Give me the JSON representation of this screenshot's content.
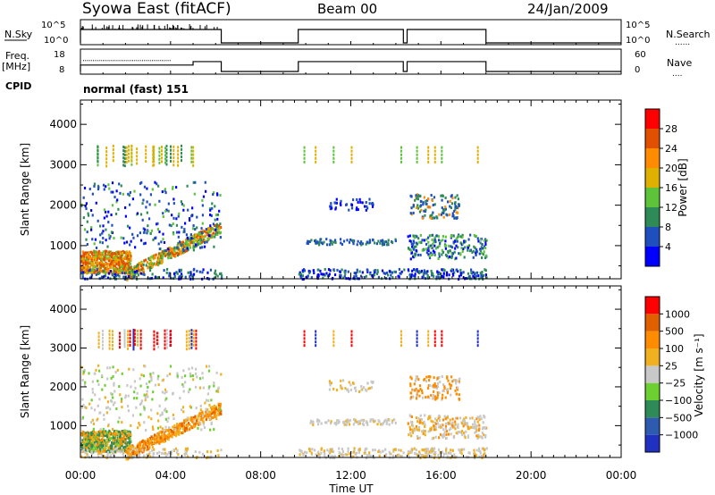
{
  "header": {
    "station": "Syowa East (fitACF)",
    "beam": "Beam 00",
    "date": "24/Jan/2009"
  },
  "labels": {
    "nsky": "N.Sky",
    "nsearch": "N.Search",
    "freq_line1": "Freq.",
    "freq_line2": "[MHz]",
    "nave": "Nave",
    "cpid": "CPID",
    "cpid_value": "normal (fast) 151",
    "nsky_ticks": [
      "10^5",
      "10^0"
    ],
    "nsearch_ticks": [
      "10^5",
      "10^0"
    ],
    "freq_ticks": [
      "18",
      "8"
    ],
    "nave_ticks": [
      "60",
      "0"
    ],
    "search_style": "......",
    "nave_style": "...."
  },
  "colors": {
    "power": [
      "#0000ff",
      "#1f4fbf",
      "#2e8b57",
      "#5dc43a",
      "#e0b000",
      "#ff8c00",
      "#e05000",
      "#ff0000"
    ],
    "velocity": [
      "#2030c0",
      "#2e5ab0",
      "#2e8b57",
      "#6cd030",
      "#c8c8c8",
      "#f0b020",
      "#ff8c00",
      "#e06000",
      "#ff0000"
    ]
  },
  "chart_data": [
    {
      "type": "heatmap",
      "title": "Power",
      "xlabel": "Time UT",
      "ylabel": "Slant Range [km]",
      "xlim": [
        "00:00",
        "24:00"
      ],
      "ylim": [
        180,
        4600
      ],
      "x_ticks": [
        "00:00",
        "04:00",
        "08:00",
        "12:00",
        "16:00",
        "20:00",
        "00:00"
      ],
      "y_ticks": [
        1000,
        2000,
        3000,
        4000
      ],
      "colorbar": {
        "label": "Power [dB]",
        "ticks": [
          4,
          8,
          12,
          16,
          20,
          24,
          28
        ],
        "range": [
          0,
          32
        ]
      },
      "data_segments_ut": [
        [
          "00:00",
          "06:15"
        ],
        [
          "09:40",
          "14:20"
        ],
        [
          "14:30",
          "18:00"
        ]
      ]
    },
    {
      "type": "heatmap",
      "title": "Velocity",
      "xlabel": "Time UT",
      "ylabel": "Slant Range [km]",
      "xlim": [
        "00:00",
        "24:00"
      ],
      "ylim": [
        180,
        4600
      ],
      "x_ticks": [
        "00:00",
        "04:00",
        "08:00",
        "12:00",
        "16:00",
        "20:00",
        "00:00"
      ],
      "y_ticks": [
        1000,
        2000,
        3000,
        4000
      ],
      "colorbar": {
        "label": "Velocity [m s⁻¹]",
        "ticks": [
          "1000",
          "500",
          "100",
          "25",
          "−25",
          "−100",
          "−500",
          "−1000"
        ]
      },
      "data_segments_ut": [
        [
          "00:00",
          "06:15"
        ],
        [
          "09:40",
          "14:20"
        ],
        [
          "14:30",
          "18:00"
        ]
      ]
    }
  ]
}
